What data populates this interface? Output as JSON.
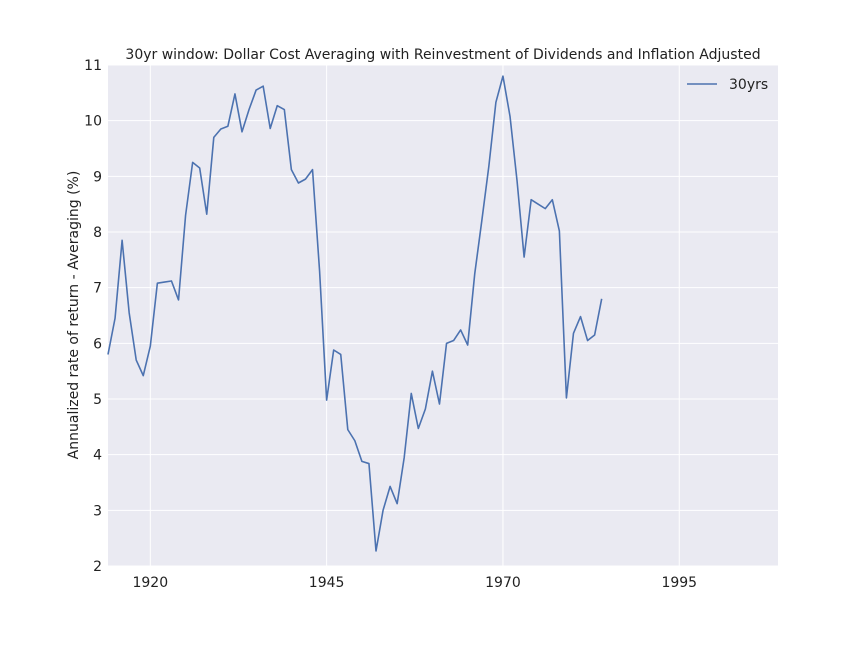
{
  "chart_data": {
    "type": "line",
    "title": "30yr window: Dollar Cost Averaging with Reinvestment of Dividends and Inflation Adjusted",
    "xlabel": "",
    "ylabel": "Annualized rate of return - Averaging (%)",
    "xlim": [
      1914,
      2009
    ],
    "ylim": [
      2,
      11
    ],
    "x_ticks": [
      1920,
      1945,
      1970,
      1995
    ],
    "y_ticks": [
      2,
      3,
      4,
      5,
      6,
      7,
      8,
      9,
      10,
      11
    ],
    "grid": true,
    "legend_position": "top-right",
    "background_color": "#eaeaf2",
    "series": [
      {
        "name": "30yrs",
        "color": "#4c72b0",
        "x": [
          1914,
          1915,
          1916,
          1917,
          1918,
          1919,
          1920,
          1921,
          1922,
          1923,
          1924,
          1925,
          1926,
          1927,
          1928,
          1929,
          1930,
          1931,
          1932,
          1933,
          1934,
          1935,
          1936,
          1937,
          1938,
          1939,
          1940,
          1941,
          1942,
          1943,
          1944,
          1945,
          1946,
          1947,
          1948,
          1949,
          1950,
          1951,
          1952,
          1953,
          1954,
          1955,
          1956,
          1957,
          1958,
          1959,
          1960,
          1961,
          1962,
          1963,
          1964,
          1965,
          1966,
          1967,
          1968,
          1969,
          1970,
          1971,
          1972,
          1973,
          1974,
          1975,
          1976,
          1977,
          1978,
          1979,
          1980,
          1981,
          1982,
          1983,
          1984
        ],
        "y": [
          5.8,
          6.45,
          7.85,
          6.55,
          5.7,
          5.42,
          5.95,
          7.08,
          7.1,
          7.12,
          6.78,
          8.3,
          9.25,
          9.15,
          8.32,
          9.7,
          9.85,
          9.9,
          10.48,
          9.8,
          10.2,
          10.55,
          10.62,
          9.86,
          10.27,
          10.2,
          9.12,
          8.88,
          8.95,
          9.12,
          7.3,
          4.98,
          5.88,
          5.8,
          4.45,
          4.25,
          3.88,
          3.84,
          2.27,
          3.0,
          3.43,
          3.12,
          3.95,
          5.1,
          4.47,
          4.82,
          5.5,
          4.91,
          6.0,
          6.05,
          6.24,
          5.97,
          7.25,
          8.2,
          9.18,
          10.33,
          10.8,
          10.08,
          8.92,
          7.55,
          8.58,
          8.5,
          8.42,
          8.58,
          8.02,
          5.02,
          6.18,
          6.48,
          6.05,
          6.15,
          6.8
        ]
      }
    ]
  }
}
